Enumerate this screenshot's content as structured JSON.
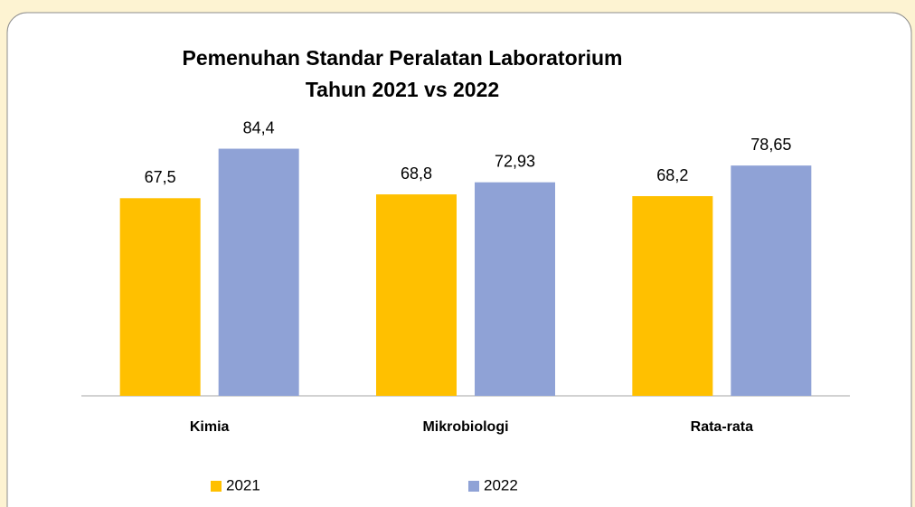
{
  "chart_data": {
    "type": "bar",
    "title": [
      "Pemenuhan Standar Peralatan Laboratorium",
      "Tahun 2021 vs 2022"
    ],
    "categories": [
      "Kimia",
      "Mikrobiologi",
      "Rata-rata"
    ],
    "series": [
      {
        "name": "2021",
        "color": "#ffc000",
        "values": [
          67.5,
          68.8,
          68.2
        ],
        "value_labels": [
          "67,5",
          "68,8",
          "68,2"
        ]
      },
      {
        "name": "2022",
        "color": "#8fa2d6",
        "values": [
          84.4,
          72.93,
          78.65
        ],
        "value_labels": [
          "84,4",
          "72,93",
          "78,65"
        ]
      }
    ],
    "ylim": [
      0,
      100
    ],
    "legend": "bottom"
  }
}
